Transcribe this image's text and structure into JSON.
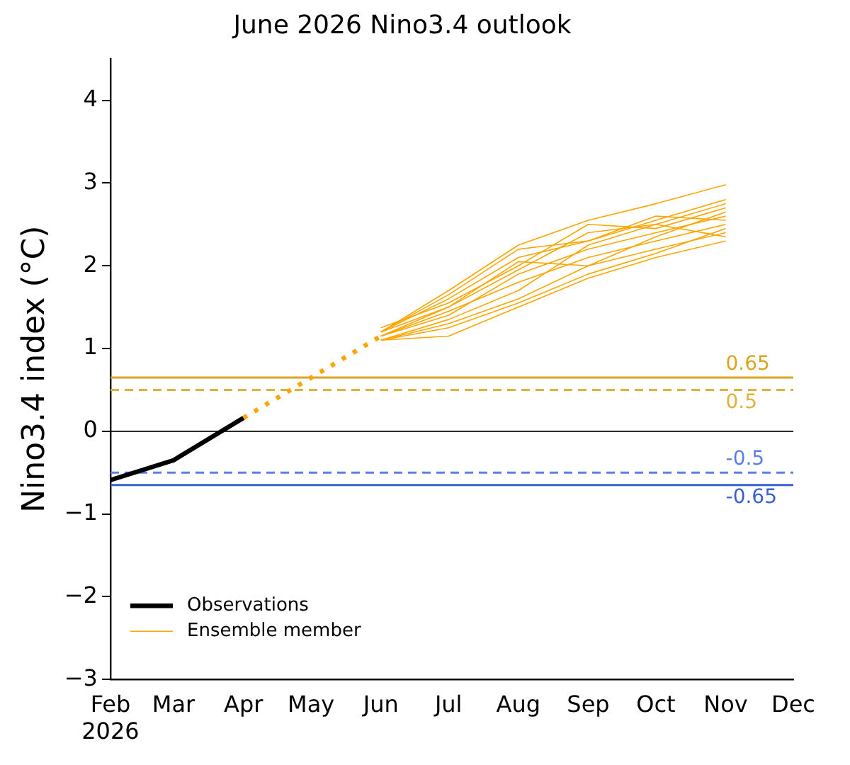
{
  "chart_data": {
    "type": "line",
    "title": "June 2026 Nino3.4 outlook",
    "ylabel": "Nino3.4 index (°C)",
    "xlim": [
      "2026-02-01",
      "2026-12-01"
    ],
    "xticks": [
      {
        "value": "2026-02-01",
        "label": "Feb\n2026"
      },
      {
        "value": "2026-03-01",
        "label": "Mar"
      },
      {
        "value": "2026-04-01",
        "label": "Apr"
      },
      {
        "value": "2026-05-01",
        "label": "May"
      },
      {
        "value": "2026-06-01",
        "label": "Jun"
      },
      {
        "value": "2026-07-01",
        "label": "Jul"
      },
      {
        "value": "2026-08-01",
        "label": "Aug"
      },
      {
        "value": "2026-09-01",
        "label": "Sep"
      },
      {
        "value": "2026-10-01",
        "label": "Oct"
      },
      {
        "value": "2026-11-01",
        "label": "Nov"
      },
      {
        "value": "2026-12-01",
        "label": "Dec"
      }
    ],
    "ylim": [
      -3,
      4.5
    ],
    "yticks": [
      {
        "value": -3,
        "label": "−3"
      },
      {
        "value": -2,
        "label": "−2"
      },
      {
        "value": -1,
        "label": "−1"
      },
      0,
      1,
      2,
      3,
      4
    ],
    "grid": false,
    "legend": "bottom left",
    "marker": "none",
    "series": [
      {
        "name": "Observations",
        "color": "#000000",
        "x": [
          "2026-02-01",
          "2026-03-01",
          "2026-04-01"
        ],
        "values": [
          -0.59,
          -0.35,
          0.16
        ]
      },
      {
        "color": "#ffa500",
        "line_style": "dotted",
        "x": [
          "2026-04-01",
          "2026-06-01"
        ],
        "values": [
          0.16,
          1.15
        ]
      },
      {
        "name": "Ensemble member",
        "color": "#ffa500",
        "x": [
          "2026-06-01",
          "2026-07-01",
          "2026-08-01",
          "2026-09-01",
          "2026-10-01",
          "2026-11-01"
        ],
        "values": [
          1.2,
          1.7,
          2.25,
          2.55,
          2.75,
          2.98
        ]
      },
      {
        "color": "#ffa500",
        "x": [
          "2026-06-01",
          "2026-07-01",
          "2026-08-01",
          "2026-09-01",
          "2026-10-01",
          "2026-11-01"
        ],
        "values": [
          1.1,
          1.15,
          1.5,
          1.85,
          2.1,
          2.3
        ]
      },
      {
        "color": "#ffa500",
        "x": [
          "2026-06-01",
          "2026-07-01",
          "2026-08-01",
          "2026-09-01",
          "2026-10-01",
          "2026-11-01"
        ],
        "values": [
          1.15,
          1.4,
          1.9,
          2.2,
          2.4,
          2.6
        ]
      },
      {
        "color": "#ffa500",
        "x": [
          "2026-06-01",
          "2026-07-01",
          "2026-08-01",
          "2026-09-01",
          "2026-10-01",
          "2026-11-01"
        ],
        "values": [
          1.2,
          1.6,
          2.1,
          2.3,
          2.55,
          2.8
        ]
      },
      {
        "color": "#ffa500",
        "x": [
          "2026-06-01",
          "2026-07-01",
          "2026-08-01",
          "2026-09-01",
          "2026-10-01",
          "2026-11-01"
        ],
        "values": [
          1.1,
          1.3,
          1.6,
          2.0,
          2.2,
          2.4
        ]
      },
      {
        "color": "#ffa500",
        "x": [
          "2026-06-01",
          "2026-07-01",
          "2026-08-01",
          "2026-09-01",
          "2026-10-01",
          "2026-11-01"
        ],
        "values": [
          1.25,
          1.55,
          2.0,
          2.5,
          2.45,
          2.7
        ]
      },
      {
        "color": "#ffa500",
        "x": [
          "2026-06-01",
          "2026-07-01",
          "2026-08-01",
          "2026-09-01",
          "2026-10-01",
          "2026-11-01"
        ],
        "values": [
          1.15,
          1.45,
          1.8,
          2.1,
          2.3,
          2.5
        ]
      },
      {
        "color": "#ffa500",
        "x": [
          "2026-06-01",
          "2026-07-01",
          "2026-08-01",
          "2026-09-01",
          "2026-10-01",
          "2026-11-01"
        ],
        "values": [
          1.2,
          1.65,
          2.2,
          2.3,
          2.6,
          2.55
        ]
      },
      {
        "color": "#ffa500",
        "x": [
          "2026-06-01",
          "2026-07-01",
          "2026-08-01",
          "2026-09-01",
          "2026-10-01",
          "2026-11-01"
        ],
        "values": [
          1.1,
          1.35,
          1.7,
          2.25,
          2.5,
          2.35
        ]
      },
      {
        "color": "#ffa500",
        "x": [
          "2026-06-01",
          "2026-07-01",
          "2026-08-01",
          "2026-09-01",
          "2026-10-01",
          "2026-11-01"
        ],
        "values": [
          1.15,
          1.5,
          2.05,
          2.0,
          2.35,
          2.65
        ]
      },
      {
        "color": "#ffa500",
        "x": [
          "2026-06-01",
          "2026-07-01",
          "2026-08-01",
          "2026-09-01",
          "2026-10-01",
          "2026-11-01"
        ],
        "values": [
          1.2,
          1.5,
          1.95,
          2.4,
          2.5,
          2.75
        ]
      },
      {
        "color": "#ffa500",
        "x": [
          "2026-06-01",
          "2026-07-01",
          "2026-08-01",
          "2026-09-01",
          "2026-10-01",
          "2026-11-01"
        ],
        "values": [
          1.1,
          1.25,
          1.55,
          1.9,
          2.15,
          2.45
        ]
      }
    ],
    "ref_lines": [
      {
        "axis": "y",
        "value": 0,
        "color": "#000000"
      },
      {
        "axis": "y",
        "value": 0.65,
        "label": "0.65",
        "color": "#daa520"
      },
      {
        "axis": "y",
        "value": 0.5,
        "label": "0.5",
        "color": "#e2b13c",
        "line_style": "dashed"
      },
      {
        "axis": "y",
        "value": -0.5,
        "label": "-0.5",
        "color": "#5b7fe6",
        "line_style": "dashed"
      },
      {
        "axis": "y",
        "value": -0.65,
        "label": "-0.65",
        "color": "#3a60d0"
      }
    ]
  }
}
